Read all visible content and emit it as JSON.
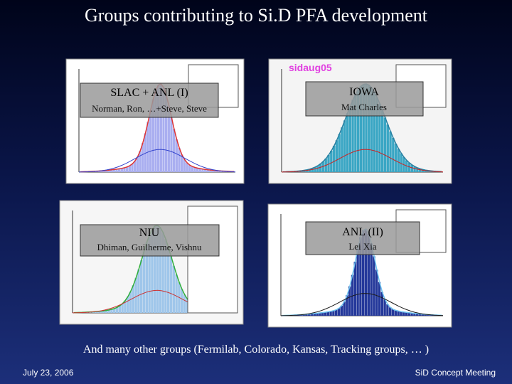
{
  "title": "Groups contributing to Si.D PFA development",
  "panels": [
    {
      "group": "SLAC + ANL (I)",
      "members": "Norman, Ron, …+Steve, Steve"
    },
    {
      "group": "IOWA",
      "members": "Mat Charles",
      "plot_label": "sidaug05"
    },
    {
      "group": "NIU",
      "members": "Dhiman, Guilherme, Vishnu"
    },
    {
      "group": "ANL (II)",
      "members": "Lei Xia"
    }
  ],
  "footer": "And many other groups (Fermilab, Colorado, Kansas, Tracking groups, … )",
  "date": "July 23, 2006",
  "meeting": "SiD Concept Meeting"
}
